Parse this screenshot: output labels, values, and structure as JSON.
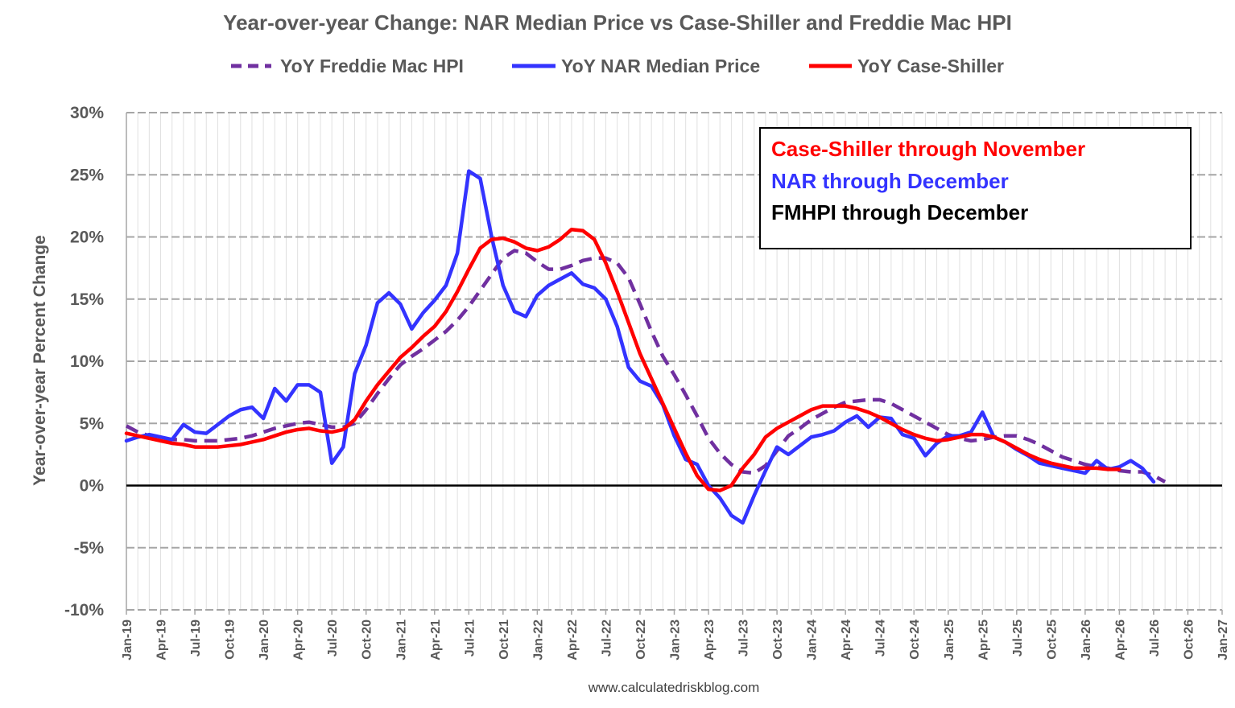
{
  "chart_data": {
    "type": "line",
    "title": "Year-over-year Change: NAR Median Price vs Case-Shiller and Freddie Mac HPI",
    "ylabel": "Year-over-year Percent Change",
    "xlabel": "",
    "credit": "www.calculatedriskblog.com",
    "ylim": [
      -10,
      30
    ],
    "yticks": [
      -10,
      -5,
      0,
      5,
      10,
      15,
      20,
      25,
      30
    ],
    "ytick_labels": [
      "-10%",
      "-5%",
      "0%",
      "5%",
      "10%",
      "15%",
      "20%",
      "25%",
      "30%"
    ],
    "x_start": "Jan-19",
    "x_end": "Jan-27",
    "x_tick_labels": [
      "Jan-19",
      "Apr-19",
      "Jul-19",
      "Oct-19",
      "Jan-20",
      "Apr-20",
      "Jul-20",
      "Oct-20",
      "Jan-21",
      "Apr-21",
      "Jul-21",
      "Oct-21",
      "Jan-22",
      "Apr-22",
      "Jul-22",
      "Oct-22",
      "Jan-23",
      "Apr-23",
      "Jul-23",
      "Oct-23",
      "Jan-24",
      "Apr-24",
      "Jul-24",
      "Oct-24",
      "Jan-25",
      "Apr-25",
      "Jul-25",
      "Oct-25",
      "Jan-26",
      "Apr-26",
      "Jul-26",
      "Oct-26",
      "Jan-27"
    ],
    "grid": true,
    "legend_position": "top",
    "annotation": {
      "lines": [
        {
          "text": "Case-Shiller through November",
          "color": "#ff0000"
        },
        {
          "text": "NAR through December",
          "color": "#3333ff"
        },
        {
          "text": "FMHPI through December",
          "color": "#000000"
        }
      ]
    },
    "series": [
      {
        "name": "YoY Freddie Mac HPI",
        "color": "#7030a0",
        "style": "dashed",
        "values": [
          4.8,
          4.3,
          4.0,
          3.8,
          3.7,
          3.7,
          3.6,
          3.6,
          3.6,
          3.7,
          3.8,
          4.0,
          4.3,
          4.6,
          4.8,
          5.0,
          5.1,
          4.9,
          4.7,
          4.7,
          5.0,
          6.1,
          7.4,
          8.6,
          9.7,
          10.4,
          11.0,
          11.7,
          12.4,
          13.3,
          14.4,
          15.7,
          17.0,
          18.3,
          18.9,
          18.7,
          18.0,
          17.4,
          17.4,
          17.7,
          18.1,
          18.3,
          18.3,
          17.9,
          16.7,
          14.6,
          12.4,
          10.4,
          8.9,
          7.3,
          5.6,
          3.8,
          2.6,
          1.7,
          1.1,
          1.0,
          1.6,
          2.8,
          4.0,
          4.6,
          5.3,
          5.8,
          6.3,
          6.7,
          6.8,
          6.9,
          6.9,
          6.6,
          6.1,
          5.6,
          5.1,
          4.6,
          4.1,
          3.8,
          3.6,
          3.7,
          3.9,
          4.0,
          4.0,
          3.7,
          3.3,
          2.8,
          2.3,
          2.0,
          1.7,
          1.5,
          1.4,
          1.2,
          1.1,
          1.1,
          0.8,
          0.3
        ]
      },
      {
        "name": "YoY NAR Median Price",
        "color": "#3333ff",
        "style": "solid",
        "values": [
          3.6,
          3.9,
          4.1,
          3.9,
          3.7,
          4.9,
          4.3,
          4.2,
          4.9,
          5.6,
          6.1,
          6.3,
          5.4,
          7.8,
          6.8,
          8.1,
          8.1,
          7.5,
          1.8,
          3.1,
          9.0,
          11.3,
          14.7,
          15.5,
          14.6,
          12.6,
          13.9,
          14.9,
          16.1,
          18.7,
          25.3,
          24.7,
          20.0,
          16.1,
          14.0,
          13.6,
          15.3,
          16.1,
          16.6,
          17.1,
          16.2,
          15.9,
          15.0,
          12.8,
          9.5,
          8.4,
          8.0,
          6.5,
          4.0,
          2.1,
          1.7,
          0.0,
          -1.0,
          -2.4,
          -3.0,
          -0.8,
          1.2,
          3.1,
          2.5,
          3.2,
          3.9,
          4.1,
          4.4,
          5.1,
          5.6,
          4.7,
          5.5,
          5.4,
          4.1,
          3.8,
          2.4,
          3.4,
          4.0,
          4.0,
          4.3,
          5.9,
          3.9,
          3.5,
          2.9,
          2.4,
          1.8,
          1.6,
          1.4,
          1.2,
          1.0,
          2.0,
          1.3,
          1.5,
          2.0,
          1.4,
          0.3
        ]
      },
      {
        "name": "YoY Case-Shiller",
        "color": "#ff0000",
        "style": "solid",
        "values": [
          4.2,
          4.0,
          3.8,
          3.6,
          3.4,
          3.3,
          3.1,
          3.1,
          3.1,
          3.2,
          3.3,
          3.5,
          3.7,
          4.0,
          4.3,
          4.5,
          4.6,
          4.4,
          4.3,
          4.5,
          5.3,
          6.8,
          8.1,
          9.2,
          10.3,
          11.1,
          12.0,
          12.8,
          14.0,
          15.6,
          17.4,
          19.1,
          19.8,
          19.9,
          19.6,
          19.1,
          18.9,
          19.2,
          19.8,
          20.6,
          20.5,
          19.8,
          17.9,
          15.6,
          13.1,
          10.6,
          8.6,
          6.6,
          4.6,
          2.6,
          0.8,
          -0.3,
          -0.4,
          0.0,
          1.4,
          2.5,
          3.9,
          4.6,
          5.1,
          5.6,
          6.1,
          6.4,
          6.4,
          6.4,
          6.2,
          5.9,
          5.5,
          5.0,
          4.5,
          4.1,
          3.8,
          3.6,
          3.7,
          3.9,
          4.1,
          4.1,
          3.9,
          3.5,
          3.0,
          2.5,
          2.1,
          1.8,
          1.6,
          1.4,
          1.4,
          1.4,
          1.3,
          1.3
        ]
      }
    ]
  }
}
